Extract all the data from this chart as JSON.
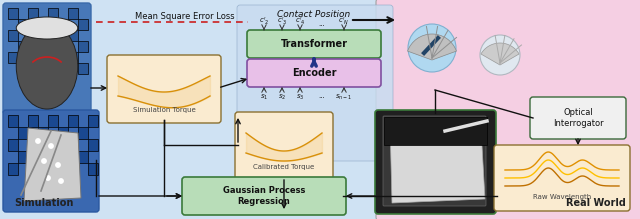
{
  "fig_width": 6.4,
  "fig_height": 2.19,
  "dpi": 100,
  "bg_color": "#ffffff",
  "sim_bg": "#cfe2f3",
  "real_bg": "#f5cfe3",
  "center_bg": "#c8dcf0",
  "sim_label": "Simulation",
  "real_label": "Real World",
  "contact_title": "Contact Position",
  "mse_title": "Mean Square Error Loss",
  "transformer_label": "Transformer",
  "encoder_label": "Encoder",
  "gpr_label": "Gaussian Process\nRegression",
  "sim_torque_label": "Simulation Torque",
  "cal_torque_label": "Calibrated Torque",
  "optical_label": "Optical\nInterrogator",
  "raw_label": "Raw Wavelength",
  "transformer_fc": "#b8ddb8",
  "transformer_ec": "#3a7a3a",
  "encoder_fc": "#e8c0e8",
  "encoder_ec": "#8050a0",
  "gpr_fc": "#b8ddb8",
  "gpr_ec": "#3a7a3a",
  "box_fc": "#faebd0",
  "box_ec": "#8a7030",
  "opt_fc": "#f0f0f0",
  "opt_ec": "#3a6a3a",
  "arrow_c": "#111111",
  "dash_c": "#cc2020",
  "enc_arr_c": "#223388"
}
